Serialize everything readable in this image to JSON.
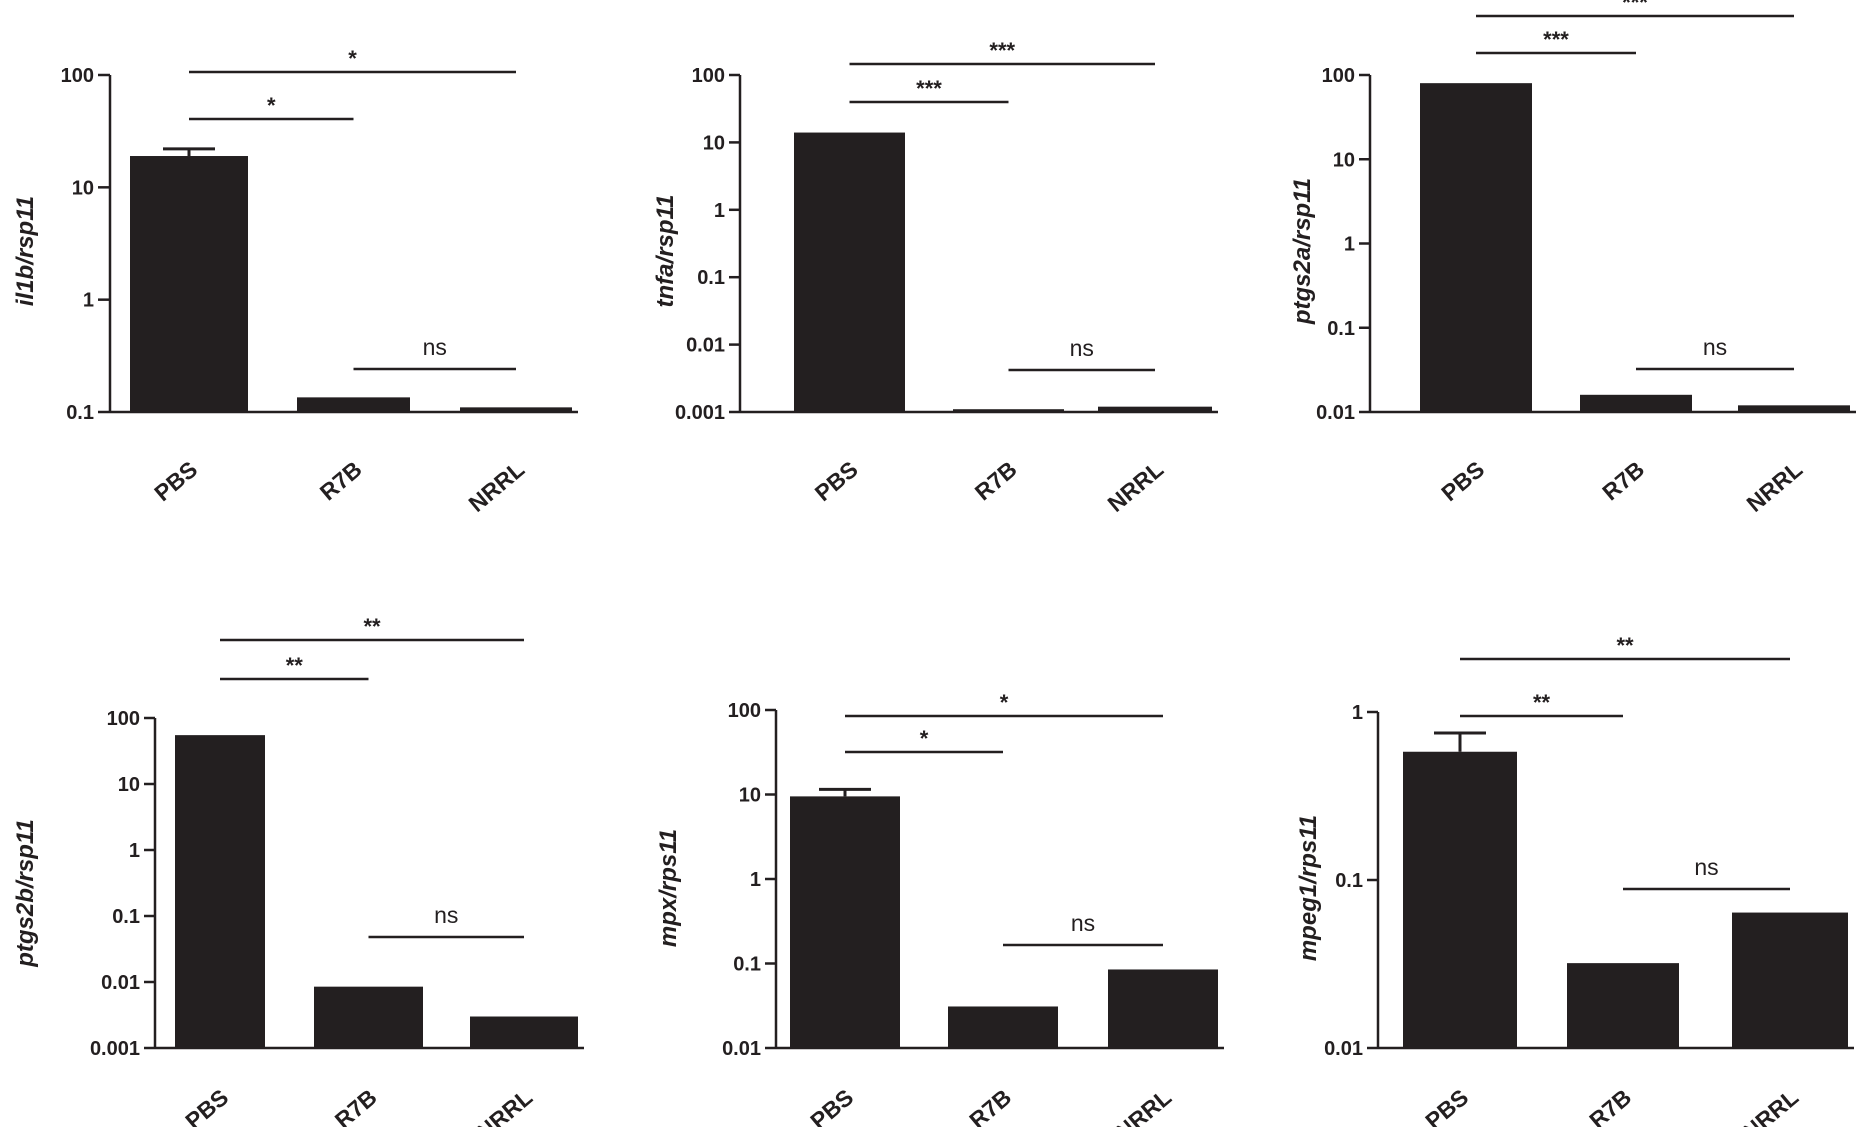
{
  "chart_data": [
    {
      "type": "bar",
      "scale": "log",
      "ylabel": "il1b/rsp11",
      "categories": [
        "PBS",
        "R7B",
        "NRRL"
      ],
      "values": [
        19,
        0.135,
        0.11
      ],
      "error": [
        22,
        null,
        null
      ],
      "ylim": [
        0.1,
        100
      ],
      "yticks": [
        0.1,
        1,
        10,
        100
      ],
      "ytick_labels": [
        "0.1",
        "1",
        "10",
        "100"
      ],
      "comparisons": [
        {
          "from": 0,
          "to": 1,
          "label": "*"
        },
        {
          "from": 0,
          "to": 2,
          "label": "*"
        },
        {
          "from": 1,
          "to": 2,
          "label": "ns"
        }
      ]
    },
    {
      "type": "bar",
      "scale": "log",
      "ylabel": "tnfa/rsp11",
      "categories": [
        "PBS",
        "R7B",
        "NRRL"
      ],
      "values": [
        14,
        0.0011,
        0.0012
      ],
      "error": [
        null,
        null,
        null
      ],
      "ylim": [
        0.001,
        100
      ],
      "yticks": [
        0.001,
        0.01,
        0.1,
        1,
        10,
        100
      ],
      "ytick_labels": [
        "0.001",
        "0.01",
        "0.1",
        "1",
        "10",
        "100"
      ],
      "comparisons": [
        {
          "from": 0,
          "to": 1,
          "label": "***"
        },
        {
          "from": 0,
          "to": 2,
          "label": "***"
        },
        {
          "from": 1,
          "to": 2,
          "label": "ns"
        }
      ]
    },
    {
      "type": "bar",
      "scale": "log",
      "ylabel": "ptgs2a/rsp11",
      "categories": [
        "PBS",
        "R7B",
        "NRRL"
      ],
      "values": [
        80,
        0.016,
        0.012
      ],
      "error": [
        null,
        null,
        null
      ],
      "ylim": [
        0.01,
        100
      ],
      "yticks": [
        0.01,
        0.1,
        1,
        10,
        100
      ],
      "ytick_labels": [
        "0.01",
        "0.1",
        "1",
        "10",
        "100"
      ],
      "comparisons": [
        {
          "from": 0,
          "to": 1,
          "label": "***"
        },
        {
          "from": 0,
          "to": 2,
          "label": "***"
        },
        {
          "from": 1,
          "to": 2,
          "label": "ns"
        }
      ]
    },
    {
      "type": "bar",
      "scale": "log",
      "ylabel": "ptgs2b/rsp11",
      "categories": [
        "PBS",
        "R7B",
        "NRRL"
      ],
      "values": [
        55,
        0.0085,
        0.003
      ],
      "error": [
        null,
        null,
        null
      ],
      "ylim": [
        0.001,
        100
      ],
      "yticks": [
        0.001,
        0.01,
        0.1,
        1,
        10,
        100
      ],
      "ytick_labels": [
        "0.001",
        "0.01",
        "0.1",
        "1",
        "10",
        "100"
      ],
      "comparisons": [
        {
          "from": 0,
          "to": 1,
          "label": "**"
        },
        {
          "from": 0,
          "to": 2,
          "label": "**"
        },
        {
          "from": 1,
          "to": 2,
          "label": "ns"
        }
      ]
    },
    {
      "type": "bar",
      "scale": "log",
      "ylabel": "mpx/rps11",
      "categories": [
        "PBS",
        "R7B",
        "NRRL"
      ],
      "values": [
        9.5,
        0.031,
        0.085
      ],
      "error": [
        11.5,
        null,
        null
      ],
      "ylim": [
        0.01,
        100
      ],
      "yticks": [
        0.01,
        0.1,
        1,
        10,
        100
      ],
      "ytick_labels": [
        "0.01",
        "0.1",
        "1",
        "10",
        "100"
      ],
      "comparisons": [
        {
          "from": 0,
          "to": 1,
          "label": "*"
        },
        {
          "from": 0,
          "to": 2,
          "label": "*"
        },
        {
          "from": 1,
          "to": 2,
          "label": "ns"
        }
      ]
    },
    {
      "type": "bar",
      "scale": "log",
      "ylabel": "mpeg1/rps11",
      "categories": [
        "PBS",
        "R7B",
        "NRRL"
      ],
      "values": [
        0.58,
        0.032,
        0.064
      ],
      "error": [
        0.75,
        null,
        null
      ],
      "ylim": [
        0.01,
        1
      ],
      "yticks": [
        0.01,
        0.1,
        1
      ],
      "ytick_labels": [
        "0.01",
        "0.1",
        "1"
      ],
      "comparisons": [
        {
          "from": 0,
          "to": 1,
          "label": "**"
        },
        {
          "from": 0,
          "to": 2,
          "label": "**"
        },
        {
          "from": 1,
          "to": 2,
          "label": "ns"
        }
      ]
    }
  ],
  "colors": {
    "bar": "#231f20",
    "axis": "#231f20",
    "text": "#231f20"
  }
}
